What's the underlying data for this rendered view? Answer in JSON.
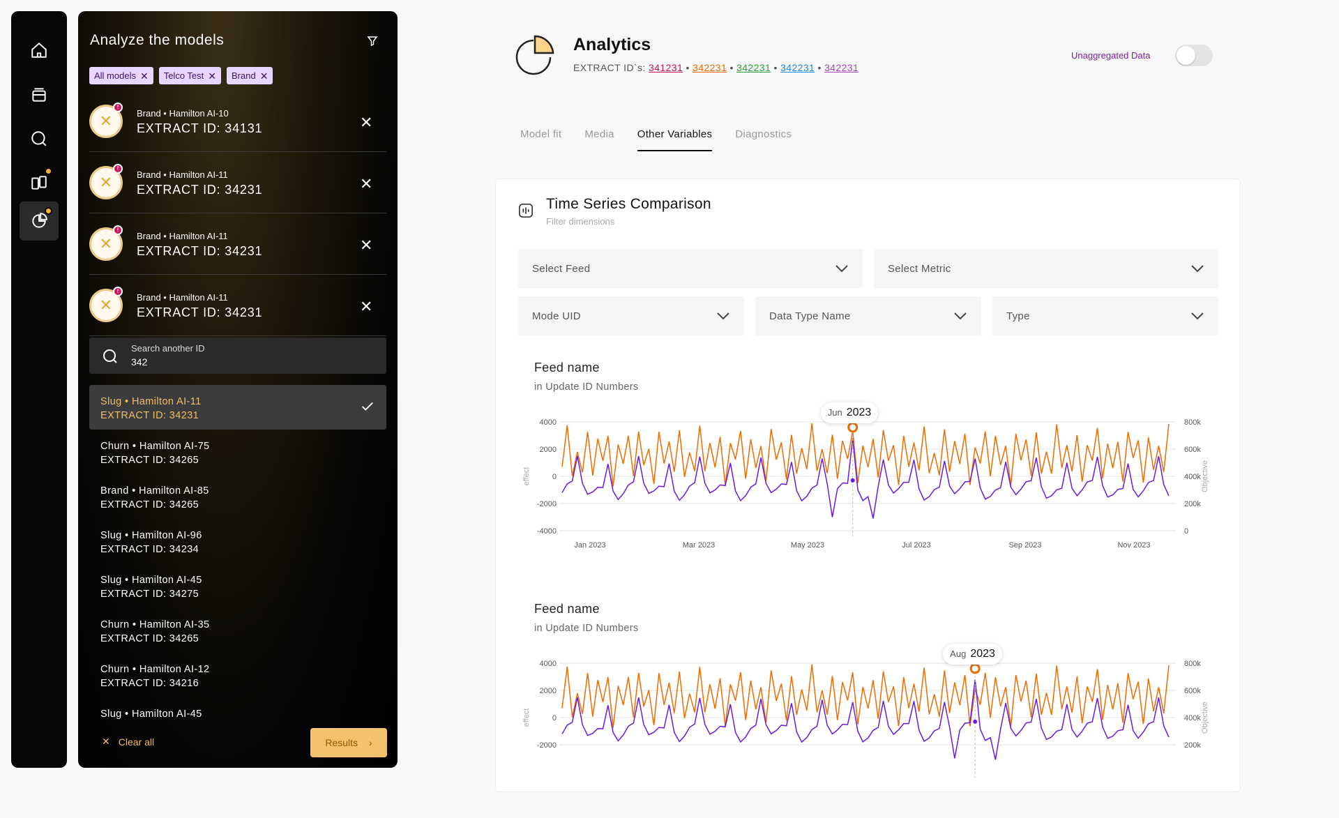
{
  "panel": {
    "title": "Analyze the models",
    "chips": [
      "All models",
      "Telco Test",
      "Brand"
    ],
    "models": [
      {
        "meta": "Brand  • Hamilton AI-10",
        "extract": "EXTRACT ID: 34131"
      },
      {
        "meta": "Brand  • Hamilton AI-11",
        "extract": "EXTRACT ID: 34231"
      },
      {
        "meta": "Brand  • Hamilton AI-11",
        "extract": "EXTRACT ID: 34231"
      },
      {
        "meta": "Brand  • Hamilton AI-11",
        "extract": "EXTRACT ID: 34231"
      }
    ],
    "search": {
      "label": "Search another ID",
      "value": "342"
    },
    "results": [
      {
        "l1": "Slug • Hamilton AI-11",
        "l2": "EXTRACT ID: 34231",
        "selected": true
      },
      {
        "l1": "Churn • Hamilton AI-75",
        "l2": "EXTRACT ID: 34265"
      },
      {
        "l1": "Brand • Hamilton AI-85",
        "l2": "EXTRACT ID: 34265"
      },
      {
        "l1": "Slug • Hamilton AI-96",
        "l2": "EXTRACT ID: 34234"
      },
      {
        "l1": "Slug • Hamilton AI-45",
        "l2": "EXTRACT ID: 34275"
      },
      {
        "l1": "Churn • Hamilton AI-35",
        "l2": "EXTRACT ID: 34265"
      },
      {
        "l1": "Churn • Hamilton AI-12",
        "l2": "EXTRACT ID: 34216"
      },
      {
        "l1": "Slug • Hamilton AI-45",
        "l2": ""
      }
    ],
    "clear_label": "Clear all",
    "results_label": "Results"
  },
  "header": {
    "title": "Analytics",
    "ids_label": "EXTRACT ID`s:",
    "ids": [
      {
        "id": "341231",
        "color": "#c2185b"
      },
      {
        "id": "342231",
        "color": "#ef6c00"
      },
      {
        "id": "342231",
        "color": "#2e9e3a"
      },
      {
        "id": "342231",
        "color": "#1e88e5"
      },
      {
        "id": "342231",
        "color": "#ab47bc"
      }
    ],
    "unaggregated_label": "Unaggregated Data"
  },
  "tabs": [
    {
      "label": "Model fit",
      "active": false
    },
    {
      "label": "Media",
      "active": false
    },
    {
      "label": "Other Variables",
      "active": true
    },
    {
      "label": "Diagnostics",
      "active": false
    }
  ],
  "card": {
    "title": "Time Series Comparison",
    "subtitle": "Filter dimensions",
    "selects": {
      "feed": "Select Feed",
      "metric": "Select Metric",
      "mode": "Mode UID",
      "datatype": "Data Type Name",
      "type": "Type"
    }
  },
  "chart_data": [
    {
      "type": "line",
      "title": "Feed name",
      "subtitle": "in Update ID Numbers",
      "ylabel": "effect",
      "y2label": "Objective",
      "ylim": [
        -4000,
        4000
      ],
      "y2lim": [
        0,
        800000
      ],
      "yticks": [
        "4000",
        "2000",
        "0",
        "-2000",
        "-4000"
      ],
      "y2ticks": [
        "800k",
        "600k",
        "400k",
        "200k",
        "0"
      ],
      "xticks": [
        "Jan 2023",
        "Mar 2023",
        "May 2023",
        "Jul 2023",
        "Sep 2023",
        "Nov 2023"
      ],
      "series": [
        {
          "color": "#ef6c00",
          "axis": "left"
        },
        {
          "color": "#6a1be0",
          "axis": "left"
        }
      ],
      "tooltip": {
        "month": "Jun",
        "year": "2023"
      },
      "highlight_index": 57
    },
    {
      "type": "line",
      "title": "Feed name",
      "subtitle": "in Update ID Numbers",
      "ylabel": "effect",
      "y2label": "Objective",
      "ylim": [
        -4000,
        4000
      ],
      "y2lim": [
        0,
        800000
      ],
      "yticks": [
        "4000",
        "2000",
        "0",
        "-2000"
      ],
      "y2ticks": [
        "800k",
        "600k",
        "400k",
        "200k"
      ],
      "xticks": [],
      "series": [
        {
          "color": "#ef6c00",
          "axis": "left"
        },
        {
          "color": "#6a1be0",
          "axis": "left"
        }
      ],
      "tooltip": {
        "month": "Aug",
        "year": "2023"
      },
      "highlight_index": 81
    }
  ]
}
